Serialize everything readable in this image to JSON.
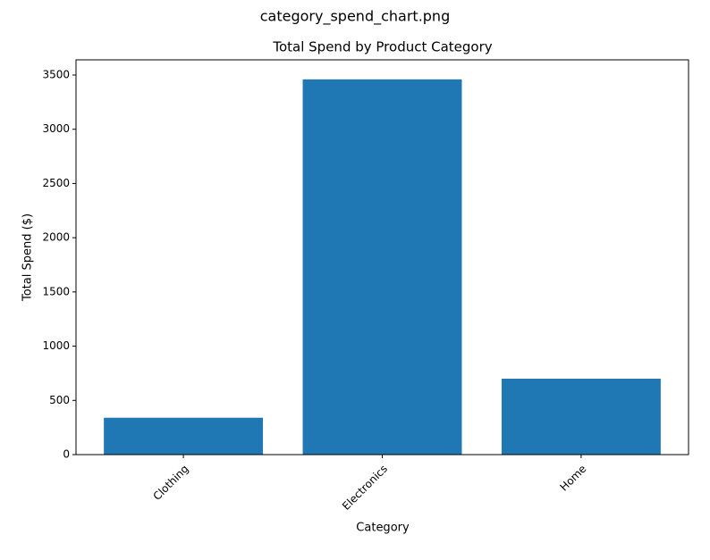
{
  "header": {
    "title": "category_spend_chart.png"
  },
  "chart_data": {
    "type": "bar",
    "title": "Total Spend by Product Category",
    "x_label": "Category",
    "y_label": "Total Spend ($)",
    "categories": [
      "Clothing",
      "Electronics",
      "Home"
    ],
    "values": [
      340,
      3460,
      700
    ],
    "color": "#1f77b4",
    "ylim": [
      0,
      3640
    ],
    "yticks": [
      0,
      500,
      1000,
      1500,
      2000,
      2500,
      3000,
      3500
    ],
    "grid": false
  }
}
